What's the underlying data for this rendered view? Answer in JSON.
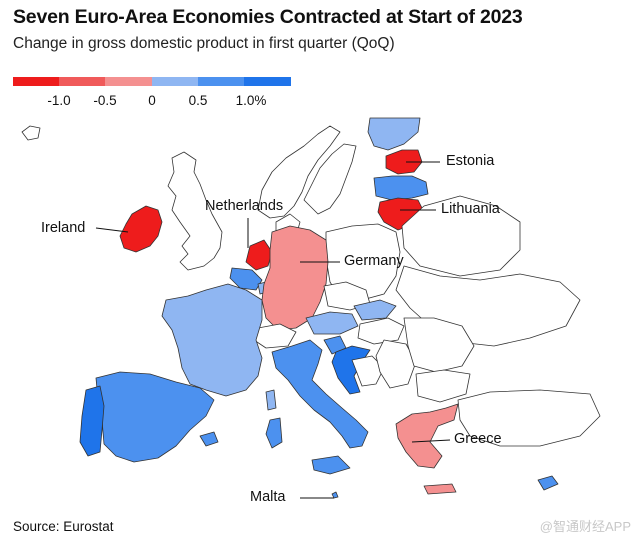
{
  "title": "Seven Euro-Area Economies Contracted at Start of 2023",
  "subtitle": "Change in gross domestic product in first quarter (QoQ)",
  "legend": {
    "ticks": [
      "-1.0",
      "-0.5",
      "0",
      "0.5",
      "1.0%"
    ],
    "colors": [
      "#ee1c1c",
      "#f05a5a",
      "#f49090",
      "#8fb6f2",
      "#4c91ef",
      "#1f74ea"
    ]
  },
  "labels": {
    "ireland": "Ireland",
    "netherlands": "Netherlands",
    "germany": "Germany",
    "estonia": "Estonia",
    "lithuania": "Lithuania",
    "greece": "Greece",
    "malta": "Malta"
  },
  "source": "Source: Eurostat",
  "watermark": "@智通财经APP",
  "colors": {
    "strong_red": "#ee1c1c",
    "mid_red": "#f05a5a",
    "light_red": "#f49090",
    "light_blue": "#8fb6f2",
    "mid_blue": "#4c91ef",
    "strong_blue": "#1f74ea"
  }
}
